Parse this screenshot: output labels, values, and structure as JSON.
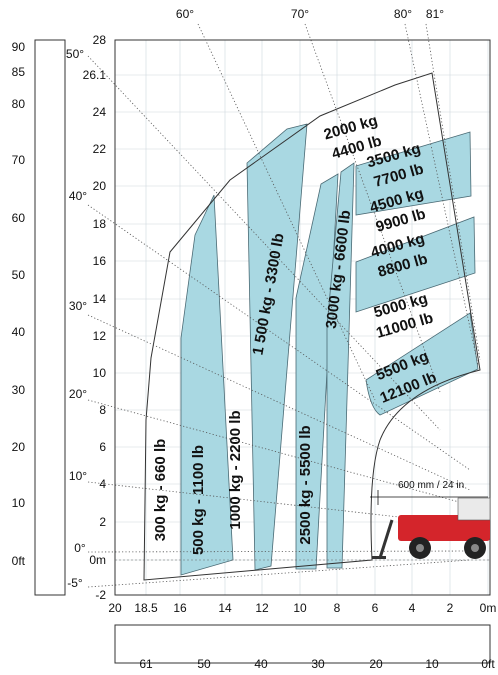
{
  "colors": {
    "zone_fill": "#a9d8e2",
    "zone_stroke": "#4a6a74",
    "machine": "#d4252b",
    "ground": "#6ab04c"
  },
  "left_axis": {
    "labels": [
      "90",
      "85",
      "80",
      "70",
      "60",
      "50",
      "40",
      "30",
      "20",
      "10",
      "0ft"
    ]
  },
  "y_axis": {
    "labels": [
      "28",
      "26.1",
      "24",
      "22",
      "20",
      "18",
      "16",
      "14",
      "12",
      "10",
      "8",
      "6",
      "4",
      "2",
      "0m",
      "-2"
    ]
  },
  "x_axis": {
    "labels": [
      "20",
      "18.5",
      "16",
      "14",
      "12",
      "10",
      "8",
      "6",
      "4",
      "2",
      "0m"
    ]
  },
  "bottom_axis": {
    "labels": [
      "61",
      "50",
      "40",
      "30",
      "20",
      "10",
      "0ft"
    ]
  },
  "angles": [
    "60°",
    "70°",
    "80°",
    "81°",
    "50°",
    "40°",
    "30°",
    "20°",
    "10°",
    "0°",
    "-5°"
  ],
  "zones": [
    "300 kg - 660 lb",
    "500 kg - 1100 lb",
    "1000 kg - 2200 lb",
    "1 500 kg - 3300 lb",
    "2500 kg - 5500 lb",
    "3000 kg - 6600 lb",
    "2000 kg",
    "4400 lb",
    "3500 kg",
    "7700 lb",
    "4500 kg",
    "9900 lb",
    "4000 kg",
    "8800 lb",
    "5000 kg",
    "11000 lb",
    "5500 kg",
    "12100 lb"
  ],
  "dimension": "600 mm / 24 in"
}
